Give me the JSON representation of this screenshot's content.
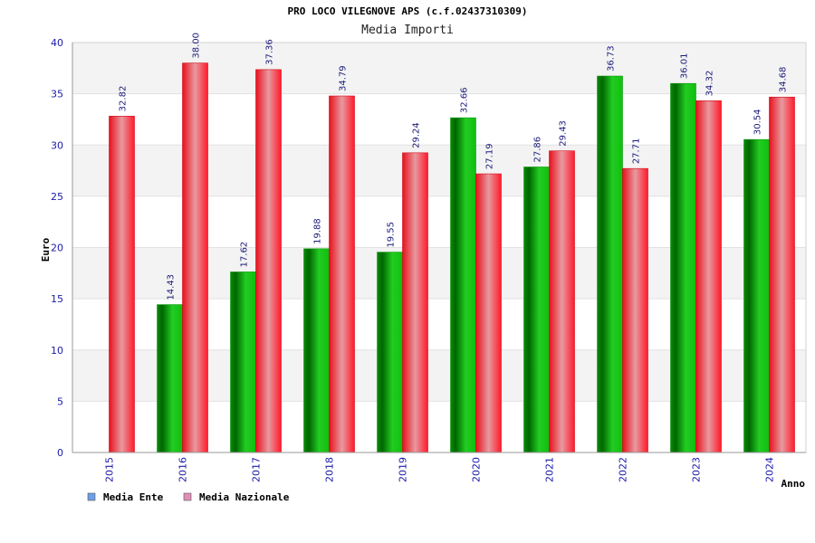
{
  "chart_data": {
    "type": "bar",
    "title": "PRO LOCO VILEGNOVE APS (c.f.02437310309)",
    "subtitle": "Media Importi",
    "xlabel": "Anno",
    "ylabel": "Euro",
    "ylim": [
      0,
      40
    ],
    "yticks": [
      0,
      5,
      10,
      15,
      20,
      25,
      30,
      35,
      40
    ],
    "grid": true,
    "legend_position": "bottom-left",
    "categories": [
      "2015",
      "2016",
      "2017",
      "2018",
      "2019",
      "2020",
      "2021",
      "2022",
      "2023",
      "2024"
    ],
    "series": [
      {
        "name": "Media Ente",
        "legend_color": "#6f9fe6",
        "bar_color": "#11bb11",
        "values": [
          null,
          14.43,
          17.62,
          19.88,
          19.55,
          32.66,
          27.86,
          36.73,
          36.01,
          30.54
        ],
        "labels": [
          "",
          "14.43",
          "17.62",
          "19.88",
          "19.55",
          "32.66",
          "27.86",
          "36.73",
          "36.01",
          "30.54"
        ]
      },
      {
        "name": "Media Nazionale",
        "legend_color": "#e08fb8",
        "bar_color": "#ee1122",
        "values": [
          32.82,
          38.0,
          37.36,
          34.79,
          29.24,
          27.19,
          29.43,
          27.71,
          34.32,
          34.68
        ],
        "labels": [
          "32.82",
          "38.00",
          "37.36",
          "34.79",
          "29.24",
          "27.19",
          "29.43",
          "27.71",
          "34.32",
          "34.68"
        ]
      }
    ]
  }
}
